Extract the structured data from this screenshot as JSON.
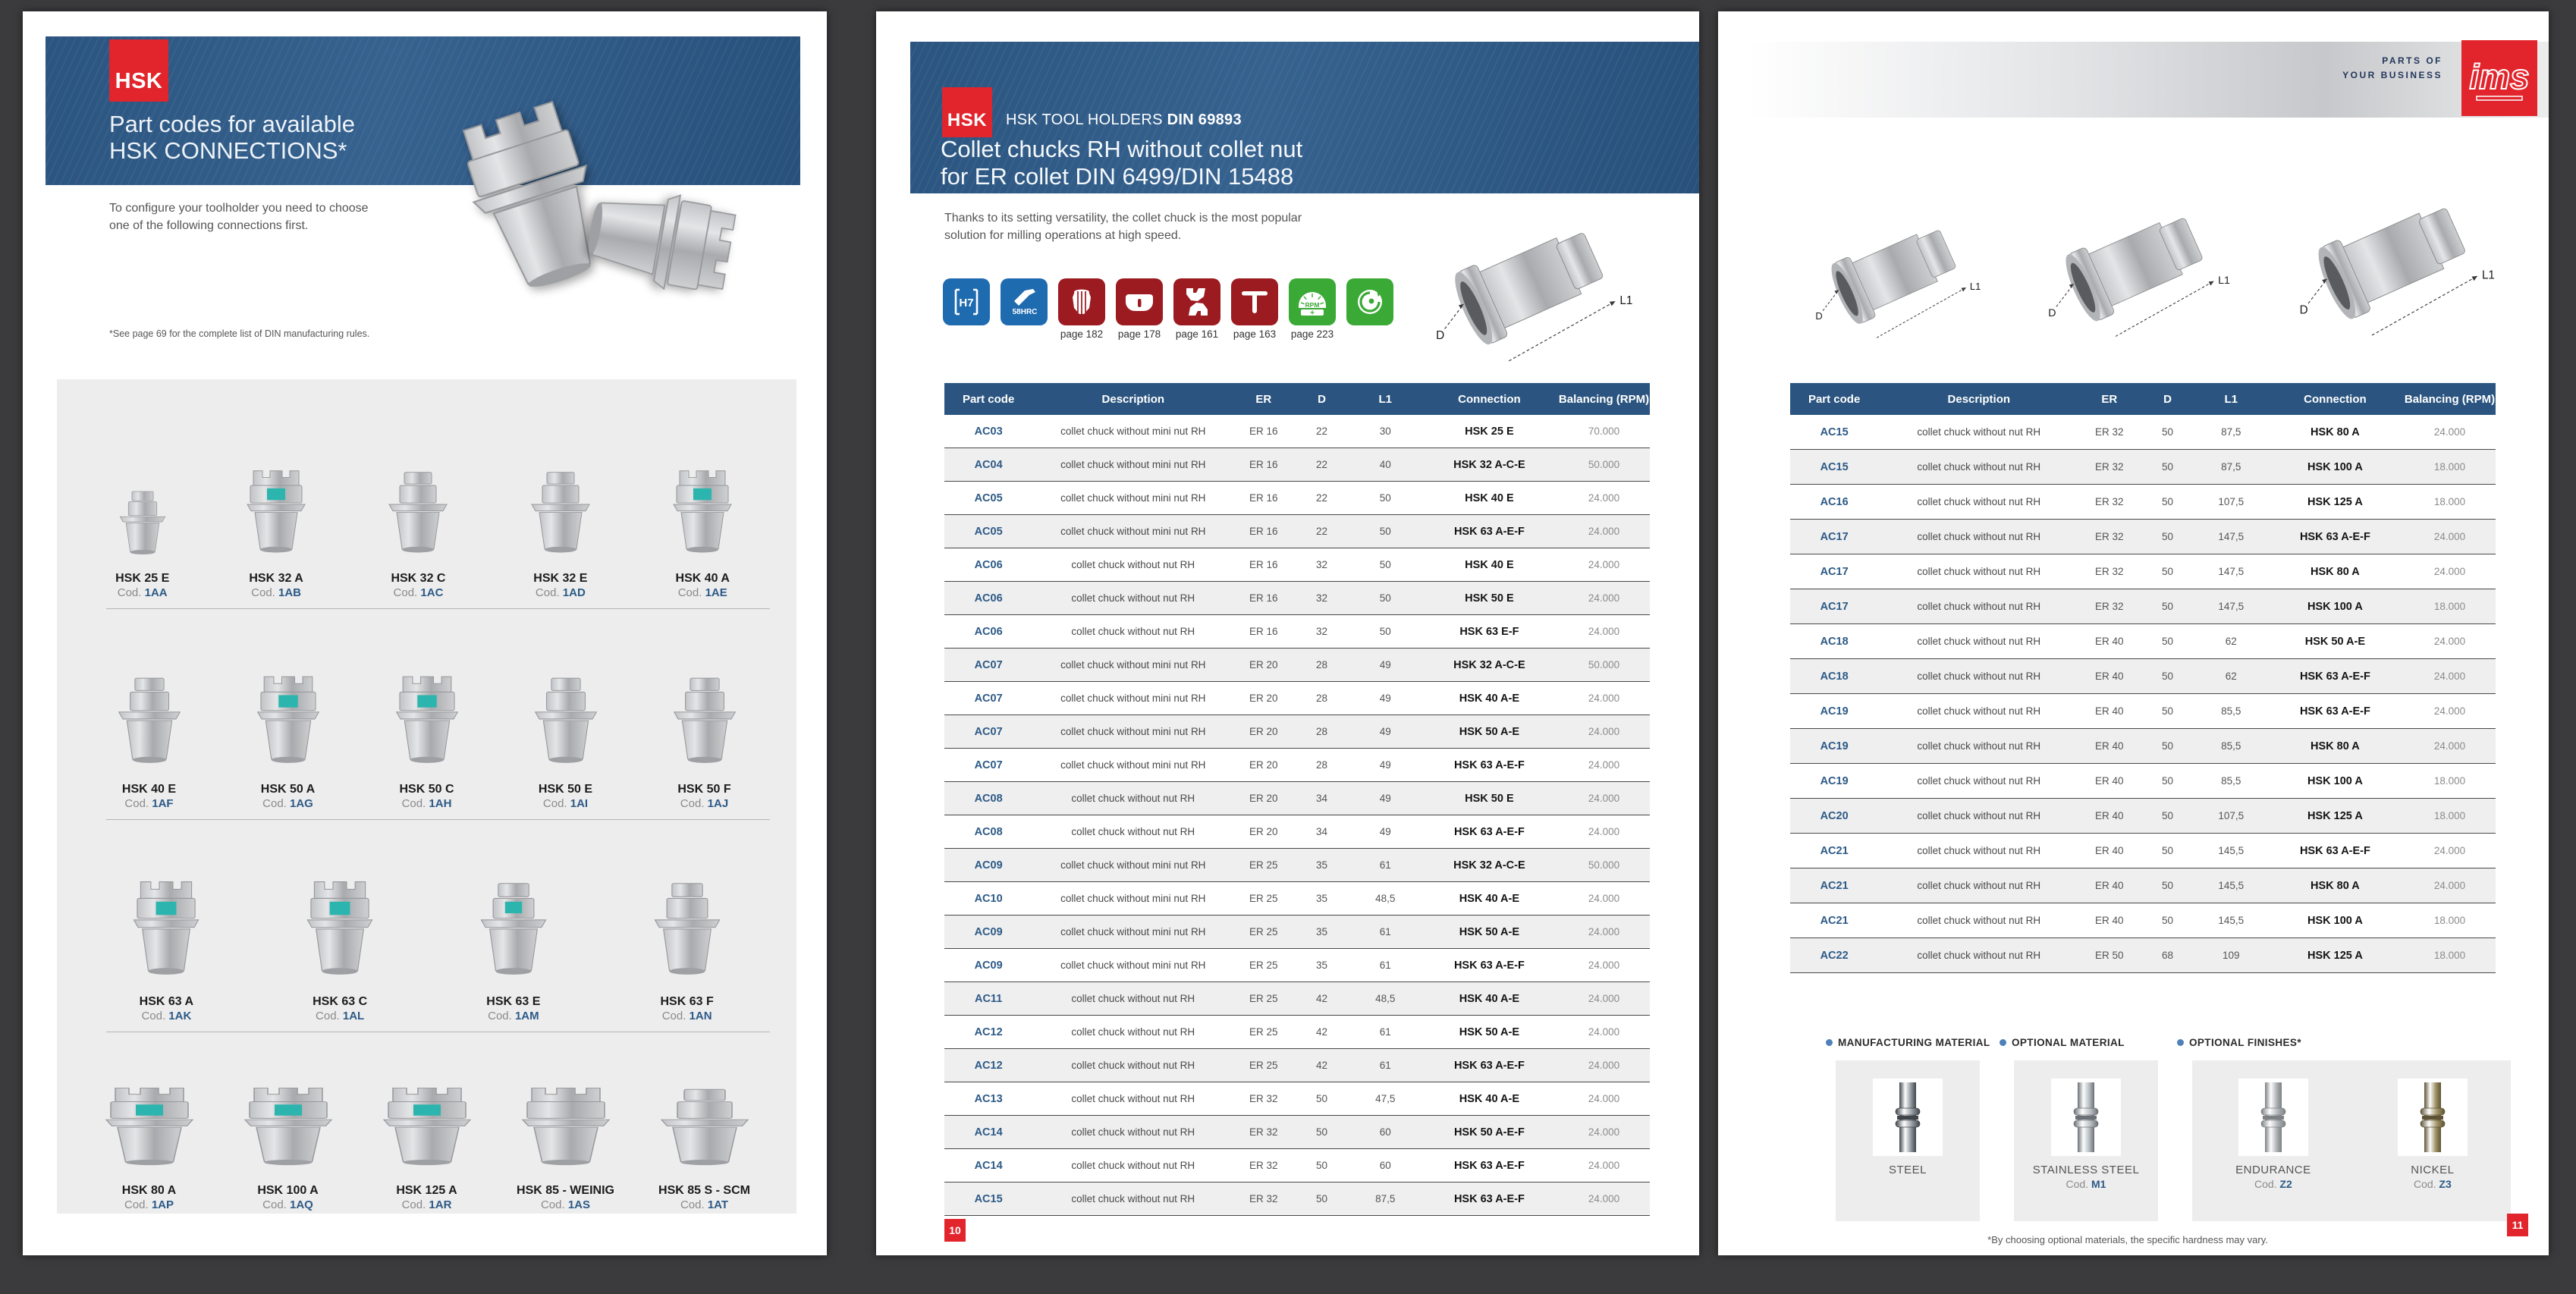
{
  "colors": {
    "brand_red": "#e2242c",
    "band_blue": "#2b5580",
    "code_blue": "#2d5a86",
    "teal_accent": "#2cb5ae",
    "icon_blue": "#1e6bb0",
    "icon_maroon": "#9c1b20",
    "icon_green": "#3aa935"
  },
  "page_left": {
    "hsk_badge": "HSK",
    "title_line1": "Part codes for available",
    "title_line2": "HSK CONNECTIONS*",
    "intro_line1": "To configure your toolholder you need to choose",
    "intro_line2": "one of the following connections first.",
    "footnote": "*See page 69 for the complete list of DIN manufacturing rules.",
    "cod_prefix": "Cod.",
    "rows": [
      {
        "items": [
          {
            "name": "HSK 25 E",
            "code": "1AA",
            "style": "plain",
            "teal": false,
            "small": true
          },
          {
            "name": "HSK 32 A",
            "code": "1AB",
            "style": "crown",
            "teal": true
          },
          {
            "name": "HSK 32 C",
            "code": "1AC",
            "style": "plain",
            "teal": false
          },
          {
            "name": "HSK 32 E",
            "code": "1AD",
            "style": "plain",
            "teal": false
          },
          {
            "name": "HSK 40 A",
            "code": "1AE",
            "style": "crown",
            "teal": true
          }
        ]
      },
      {
        "items": [
          {
            "name": "HSK 40 E",
            "code": "1AF",
            "style": "plain",
            "teal": false
          },
          {
            "name": "HSK 50 A",
            "code": "1AG",
            "style": "crown",
            "teal": true
          },
          {
            "name": "HSK 50 C",
            "code": "1AH",
            "style": "crown",
            "teal": true
          },
          {
            "name": "HSK 50 E",
            "code": "1AI",
            "style": "plain",
            "teal": false
          },
          {
            "name": "HSK 50 F",
            "code": "1AJ",
            "style": "plain",
            "teal": false
          }
        ]
      },
      {
        "items": [
          {
            "name": "HSK 63 A",
            "code": "1AK",
            "style": "crown",
            "teal": true
          },
          {
            "name": "HSK 63 C",
            "code": "1AL",
            "style": "crown",
            "teal": true
          },
          {
            "name": "HSK 63 E",
            "code": "1AM",
            "style": "plain",
            "teal": true
          },
          {
            "name": "HSK 63 F",
            "code": "1AN",
            "style": "plain",
            "teal": false
          }
        ]
      },
      {
        "items": [
          {
            "name": "HSK 80 A",
            "code": "1AP",
            "style": "crown",
            "teal": true
          },
          {
            "name": "HSK 100 A",
            "code": "1AQ",
            "style": "crown",
            "teal": true
          },
          {
            "name": "HSK 125 A",
            "code": "1AR",
            "style": "crown",
            "teal": true
          },
          {
            "name": "HSK 85 - WEINIG",
            "code": "1AS",
            "style": "crown",
            "teal": false
          },
          {
            "name": "HSK 85 S - SCM",
            "code": "1AT",
            "style": "plain",
            "teal": false
          }
        ]
      }
    ]
  },
  "page_middle": {
    "hsk_badge": "HSK",
    "kicker_regular": "HSK TOOL HOLDERS ",
    "kicker_bold": "DIN 69893",
    "title_line1": "Collet chucks RH without collet nut",
    "title_line2": "for ER collet DIN 6499/DIN 15488",
    "intro": "Thanks to its setting versatility, the collet chuck is the most popular solution for milling operations at high speed.",
    "icons": [
      {
        "glyph": "h7",
        "label": "H7",
        "color": "#1e6bb0",
        "page": ""
      },
      {
        "glyph": "hrc",
        "label": "58HRC",
        "color": "#1e6bb0",
        "page": ""
      },
      {
        "glyph": "collet",
        "label": "",
        "color": "#9c1b20",
        "page": "page 182"
      },
      {
        "glyph": "nut",
        "label": "",
        "color": "#9c1b20",
        "page": "page 178"
      },
      {
        "glyph": "wrench",
        "label": "",
        "color": "#9c1b20",
        "page": "page 161"
      },
      {
        "glyph": "twrench",
        "label": "",
        "color": "#9c1b20",
        "page": "page 163"
      },
      {
        "glyph": "rpm",
        "label": "RPM",
        "color": "#3aa935",
        "page": "page 223"
      },
      {
        "glyph": "eco",
        "label": "",
        "color": "#3aa935",
        "page": ""
      }
    ],
    "diagram": {
      "d_label": "D",
      "l1_label": "L1"
    },
    "table": {
      "headers": [
        "Part code",
        "Description",
        "ER",
        "D",
        "L1",
        "Connection",
        "Balancing (RPM)"
      ],
      "rows": [
        [
          "AC03",
          "collet chuck without mini nut RH",
          "ER 16",
          "22",
          "30",
          "HSK 25 E",
          "70.000"
        ],
        [
          "AC04",
          "collet chuck without mini nut RH",
          "ER 16",
          "22",
          "40",
          "HSK 32 A-C-E",
          "50.000"
        ],
        [
          "AC05",
          "collet chuck without mini nut RH",
          "ER 16",
          "22",
          "50",
          "HSK 40 E",
          "24.000"
        ],
        [
          "AC05",
          "collet chuck without mini nut RH",
          "ER 16",
          "22",
          "50",
          "HSK 63 A-E-F",
          "24.000"
        ],
        [
          "AC06",
          "collet chuck without nut RH",
          "ER 16",
          "32",
          "50",
          "HSK 40 E",
          "24.000"
        ],
        [
          "AC06",
          "collet chuck without nut RH",
          "ER 16",
          "32",
          "50",
          "HSK 50 E",
          "24.000"
        ],
        [
          "AC06",
          "collet chuck without nut RH",
          "ER 16",
          "32",
          "50",
          "HSK 63 E-F",
          "24.000"
        ],
        [
          "AC07",
          "collet chuck without mini nut RH",
          "ER 20",
          "28",
          "49",
          "HSK 32 A-C-E",
          "50.000"
        ],
        [
          "AC07",
          "collet chuck without mini nut RH",
          "ER 20",
          "28",
          "49",
          "HSK 40 A-E",
          "24.000"
        ],
        [
          "AC07",
          "collet chuck without mini nut RH",
          "ER 20",
          "28",
          "49",
          "HSK 50 A-E",
          "24.000"
        ],
        [
          "AC07",
          "collet chuck without mini nut RH",
          "ER 20",
          "28",
          "49",
          "HSK 63 A-E-F",
          "24.000"
        ],
        [
          "AC08",
          "collet chuck without nut RH",
          "ER 20",
          "34",
          "49",
          "HSK 50 E",
          "24.000"
        ],
        [
          "AC08",
          "collet chuck without nut RH",
          "ER 20",
          "34",
          "49",
          "HSK 63 A-E-F",
          "24.000"
        ],
        [
          "AC09",
          "collet chuck without mini nut RH",
          "ER 25",
          "35",
          "61",
          "HSK 32 A-C-E",
          "50.000"
        ],
        [
          "AC10",
          "collet chuck without mini nut RH",
          "ER 25",
          "35",
          "48,5",
          "HSK 40 A-E",
          "24.000"
        ],
        [
          "AC09",
          "collet chuck without mini nut RH",
          "ER 25",
          "35",
          "61",
          "HSK 50 A-E",
          "24.000"
        ],
        [
          "AC09",
          "collet chuck without mini nut RH",
          "ER 25",
          "35",
          "61",
          "HSK 63 A-E-F",
          "24.000"
        ],
        [
          "AC11",
          "collet chuck without nut RH",
          "ER 25",
          "42",
          "48,5",
          "HSK 40 A-E",
          "24.000"
        ],
        [
          "AC12",
          "collet chuck without nut RH",
          "ER 25",
          "42",
          "61",
          "HSK 50 A-E",
          "24.000"
        ],
        [
          "AC12",
          "collet chuck without nut RH",
          "ER 25",
          "42",
          "61",
          "HSK 63 A-E-F",
          "24.000"
        ],
        [
          "AC13",
          "collet chuck without nut RH",
          "ER 32",
          "50",
          "47,5",
          "HSK 40 A-E",
          "24.000"
        ],
        [
          "AC14",
          "collet chuck without nut RH",
          "ER 32",
          "50",
          "60",
          "HSK 50 A-E-F",
          "24.000"
        ],
        [
          "AC14",
          "collet chuck without nut RH",
          "ER 32",
          "50",
          "60",
          "HSK 63 A-E-F",
          "24.000"
        ],
        [
          "AC15",
          "collet chuck without nut RH",
          "ER 32",
          "50",
          "87,5",
          "HSK 63 A-E-F",
          "24.000"
        ]
      ]
    },
    "page_number": "10"
  },
  "page_right": {
    "tagline_line1": "PARTS OF",
    "tagline_line2": "YOUR BUSINESS",
    "logo": "ims",
    "diagrams": [
      {
        "d_label": "D",
        "l1_label": "L1"
      },
      {
        "d_label": "D",
        "l1_label": "L1"
      },
      {
        "d_label": "D",
        "l1_label": "L1"
      }
    ],
    "table": {
      "headers": [
        "Part code",
        "Description",
        "ER",
        "D",
        "L1",
        "Connection",
        "Balancing (RPM)"
      ],
      "rows": [
        [
          "AC15",
          "collet chuck without nut RH",
          "ER 32",
          "50",
          "87,5",
          "HSK 80 A",
          "24.000"
        ],
        [
          "AC15",
          "collet chuck without nut RH",
          "ER 32",
          "50",
          "87,5",
          "HSK 100 A",
          "18.000"
        ],
        [
          "AC16",
          "collet chuck without nut RH",
          "ER 32",
          "50",
          "107,5",
          "HSK 125 A",
          "18.000"
        ],
        [
          "AC17",
          "collet chuck without nut RH",
          "ER 32",
          "50",
          "147,5",
          "HSK 63 A-E-F",
          "24.000"
        ],
        [
          "AC17",
          "collet chuck without nut RH",
          "ER 32",
          "50",
          "147,5",
          "HSK 80 A",
          "24.000"
        ],
        [
          "AC17",
          "collet chuck without nut RH",
          "ER 32",
          "50",
          "147,5",
          "HSK 100 A",
          "18.000"
        ],
        [
          "AC18",
          "collet chuck without nut RH",
          "ER 40",
          "50",
          "62",
          "HSK 50 A-E",
          "24.000"
        ],
        [
          "AC18",
          "collet chuck without nut RH",
          "ER 40",
          "50",
          "62",
          "HSK 63 A-E-F",
          "24.000"
        ],
        [
          "AC19",
          "collet chuck without nut RH",
          "ER 40",
          "50",
          "85,5",
          "HSK 63 A-E-F",
          "24.000"
        ],
        [
          "AC19",
          "collet chuck without nut RH",
          "ER 40",
          "50",
          "85,5",
          "HSK 80 A",
          "24.000"
        ],
        [
          "AC19",
          "collet chuck without nut RH",
          "ER 40",
          "50",
          "85,5",
          "HSK 100 A",
          "18.000"
        ],
        [
          "AC20",
          "collet chuck without nut RH",
          "ER 40",
          "50",
          "107,5",
          "HSK 125 A",
          "18.000"
        ],
        [
          "AC21",
          "collet chuck without nut RH",
          "ER 40",
          "50",
          "145,5",
          "HSK 63 A-E-F",
          "24.000"
        ],
        [
          "AC21",
          "collet chuck without nut RH",
          "ER 40",
          "50",
          "145,5",
          "HSK 80 A",
          "24.000"
        ],
        [
          "AC21",
          "collet chuck without nut RH",
          "ER 40",
          "50",
          "145,5",
          "HSK 100 A",
          "18.000"
        ],
        [
          "AC22",
          "collet chuck without nut RH",
          "ER 50",
          "68",
          "109",
          "HSK 125 A",
          "18.000"
        ]
      ]
    },
    "materials": {
      "cod_prefix": "Cod.",
      "sections": [
        "MANUFACTURING MATERIAL",
        "OPTIONAL MATERIAL",
        "OPTIONAL FINISHES*"
      ],
      "items": [
        {
          "label": "STEEL",
          "cod": "",
          "tint": "#8f969c",
          "dark": "#3f454b"
        },
        {
          "label": "STAINLESS STEEL",
          "cod": "M1",
          "tint": "#b6bcc0",
          "dark": "#6a7075"
        },
        {
          "label": "ENDURANCE",
          "cod": "Z2",
          "tint": "#aeb2b5",
          "dark": "#7d8184"
        },
        {
          "label": "NICKEL",
          "cod": "Z3",
          "tint": "#9d8f62",
          "dark": "#5e5336"
        }
      ],
      "footnote": "*By choosing optional materials, the specific hardness may vary."
    },
    "page_number": "11"
  }
}
